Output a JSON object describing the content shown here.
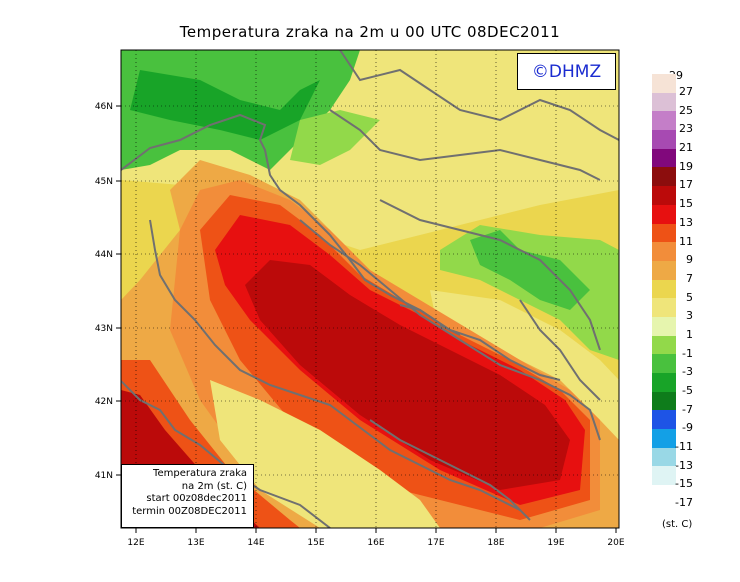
{
  "title": "Temperatura zraka na 2m u 00 UTC 08DEC2011",
  "logo": "©DHMZ",
  "infobox": {
    "line1": "Temperatura zraka",
    "line2": "na 2m (st. C)",
    "line3": "start 00z08dec2011",
    "line4": "termin 00Z08DEC2011"
  },
  "axes": {
    "lon_labels": [
      "12E",
      "13E",
      "14E",
      "15E",
      "16E",
      "17E",
      "18E",
      "19E",
      "20E"
    ],
    "lat_labels": [
      "46N",
      "45N",
      "44N",
      "43N",
      "42N",
      "41N"
    ]
  },
  "legend": {
    "top_label": "29",
    "units": "(st. C)",
    "bins": [
      {
        "label": "27",
        "color": "#f6e3d6"
      },
      {
        "label": "25",
        "color": "#dcc0d6"
      },
      {
        "label": "23",
        "color": "#c47ec8"
      },
      {
        "label": "21",
        "color": "#a74ab2"
      },
      {
        "label": "19",
        "color": "#81087c"
      },
      {
        "label": "17",
        "color": "#8c0d0d"
      },
      {
        "label": "15",
        "color": "#bb0a0a"
      },
      {
        "label": "13",
        "color": "#e71010"
      },
      {
        "label": "11",
        "color": "#ee5216"
      },
      {
        "label": "9",
        "color": "#f28d3a"
      },
      {
        "label": "7",
        "color": "#eea945"
      },
      {
        "label": "5",
        "color": "#ebd64e"
      },
      {
        "label": "3",
        "color": "#efe57a"
      },
      {
        "label": "1",
        "color": "#e6f5ae"
      },
      {
        "label": "-1",
        "color": "#92d94a"
      },
      {
        "label": "-3",
        "color": "#49c13e"
      },
      {
        "label": "-5",
        "color": "#18a428"
      },
      {
        "label": "-7",
        "color": "#0e7c1b"
      },
      {
        "label": "-9",
        "color": "#1e54e6"
      },
      {
        "label": "-11",
        "color": "#13a0e6"
      },
      {
        "label": "-13",
        "color": "#99d8e6"
      },
      {
        "label": "-15",
        "color": "#dff4f4"
      },
      {
        "label": "-17",
        "color": "#ffffff"
      }
    ]
  }
}
